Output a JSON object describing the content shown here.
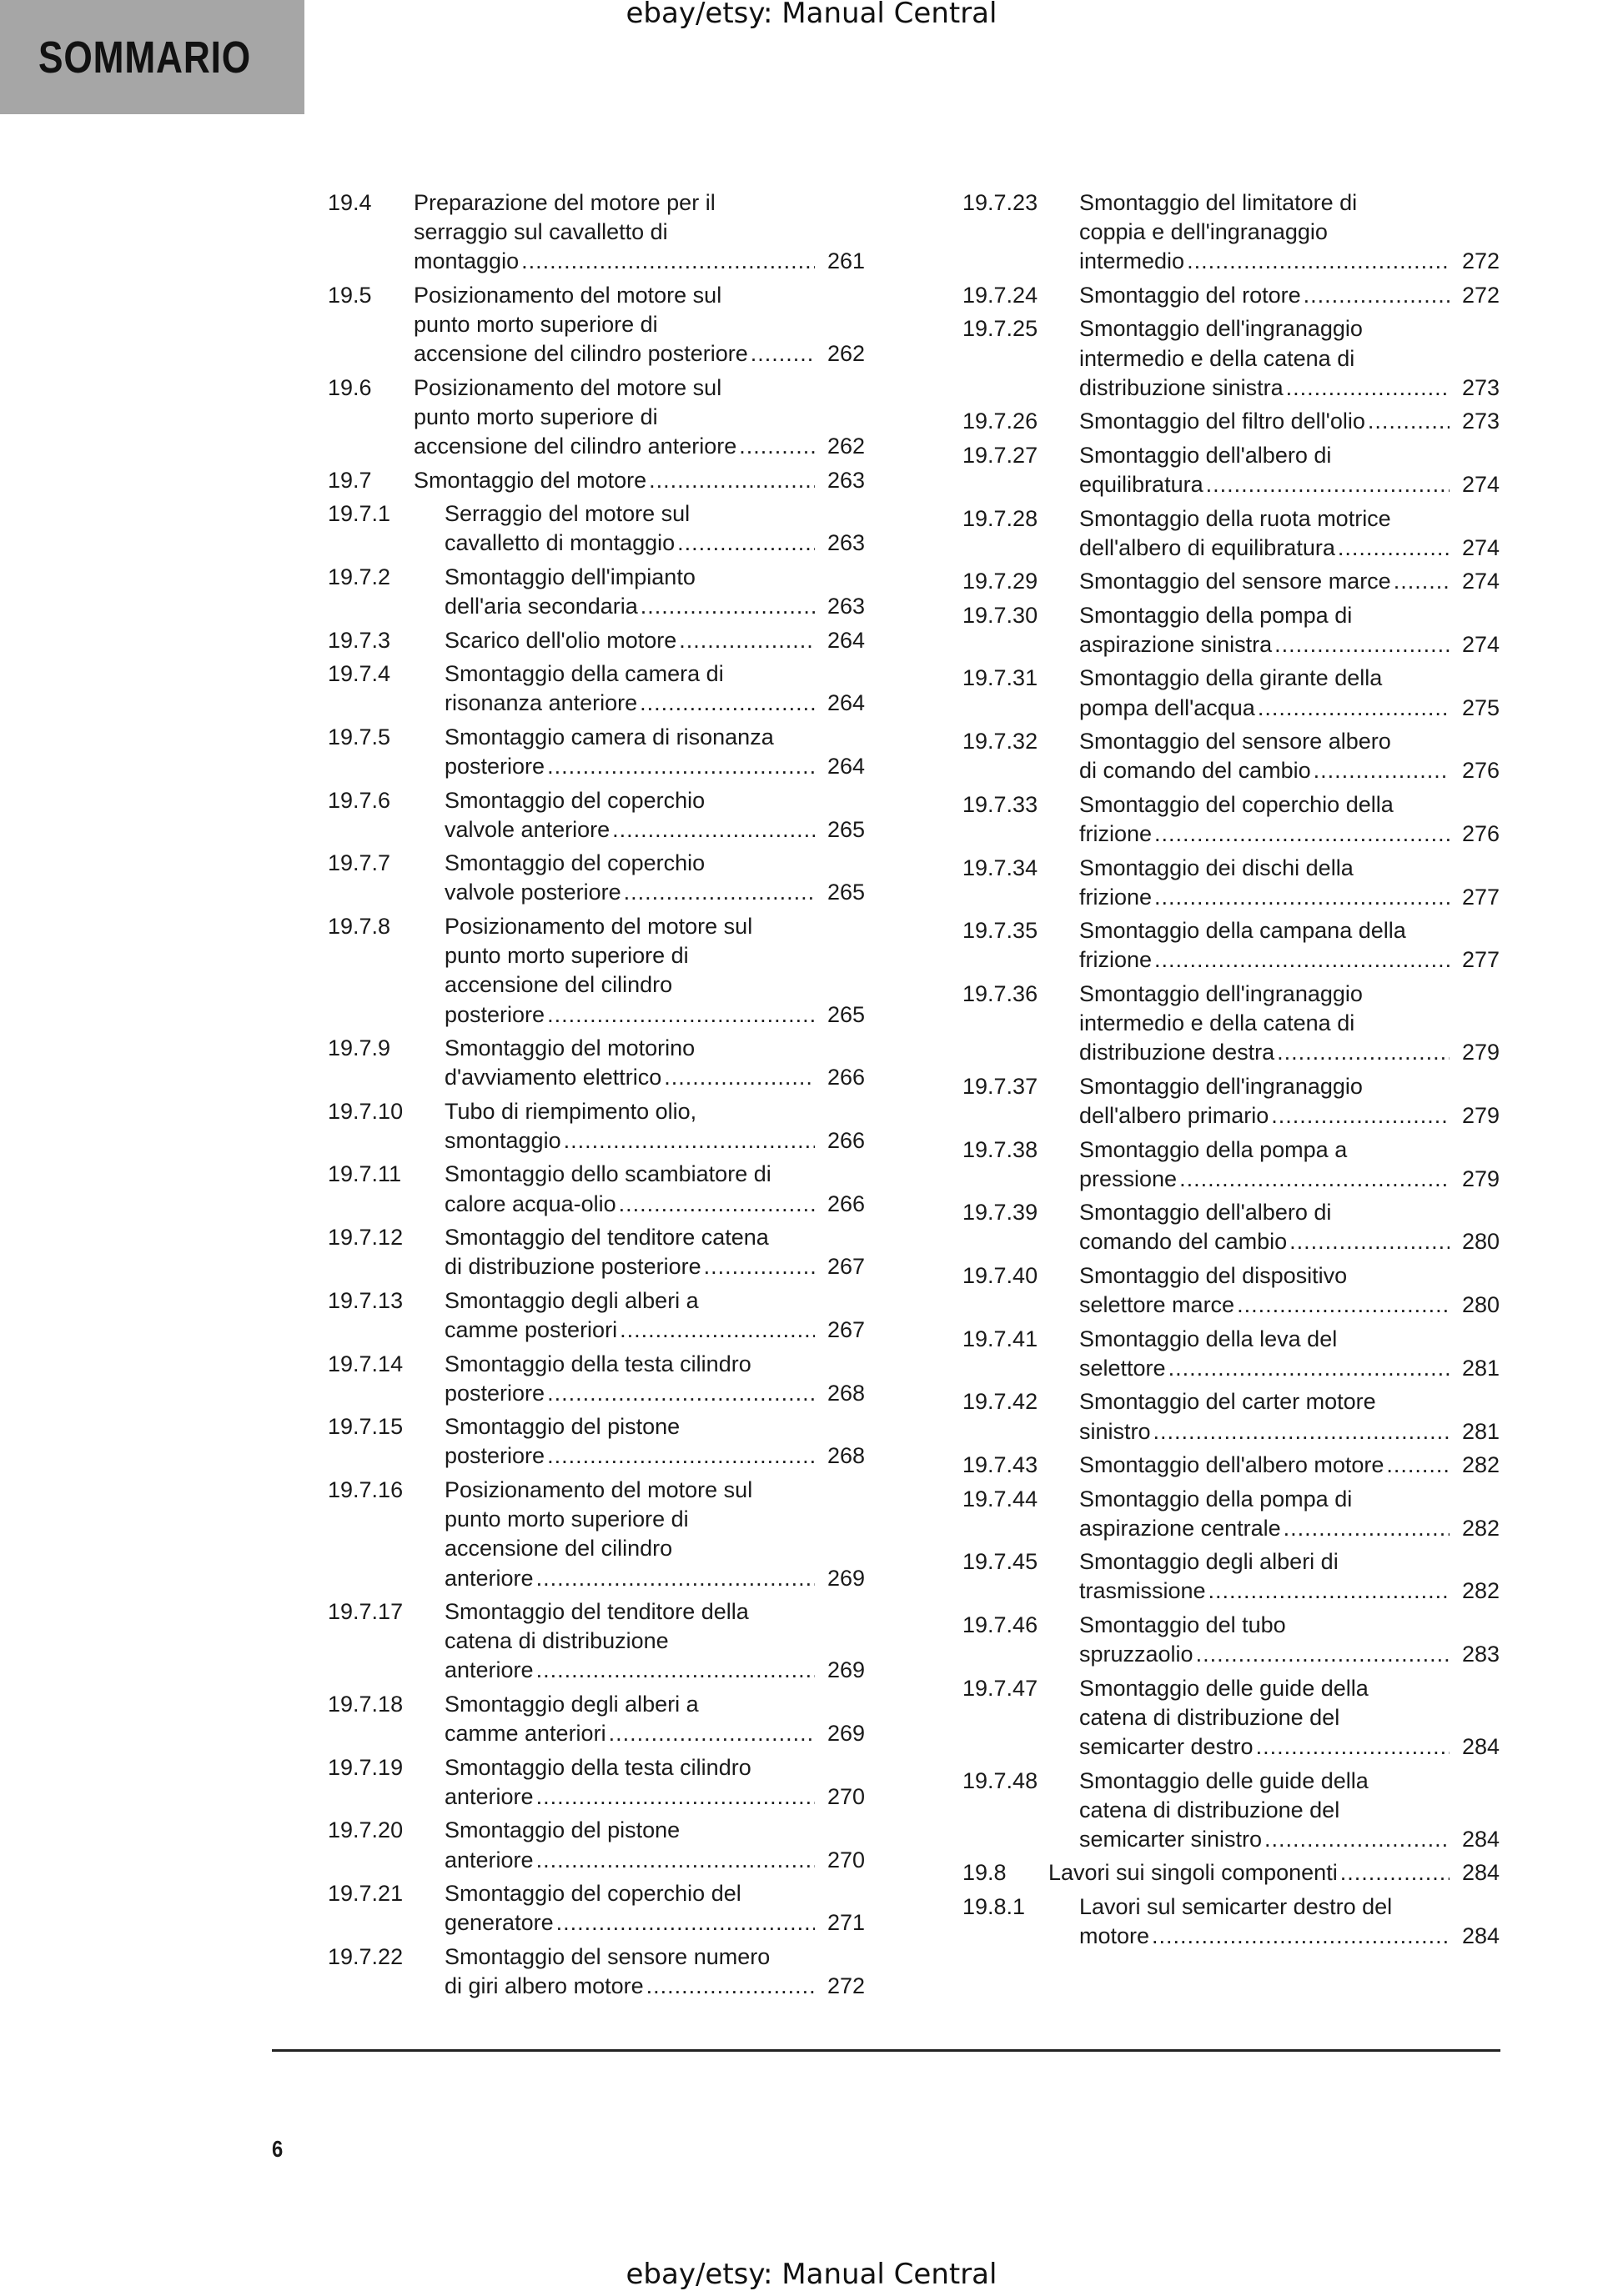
{
  "header": {
    "section_title": "SOMMARIO",
    "watermark": "ebay/etsy: Manual Central"
  },
  "footer": {
    "page_number": "6",
    "watermark": "ebay/etsy: Manual Central"
  },
  "toc": {
    "left": [
      {
        "num": "19.4",
        "level": 2,
        "lines": [
          "Preparazione del motore per il",
          "serraggio sul cavalletto di",
          "montaggio"
        ],
        "page": "261"
      },
      {
        "num": "19.5",
        "level": 2,
        "lines": [
          "Posizionamento del motore sul",
          "punto morto superiore di",
          "accensione del cilindro posteriore"
        ],
        "page": "262"
      },
      {
        "num": "19.6",
        "level": 2,
        "lines": [
          "Posizionamento del motore sul",
          "punto morto superiore di",
          "accensione del cilindro anteriore"
        ],
        "page": "262"
      },
      {
        "num": "19.7",
        "level": 2,
        "lines": [
          "Smontaggio del motore"
        ],
        "page": "263"
      },
      {
        "num": "19.7.1",
        "level": 3,
        "lines": [
          "Serraggio del motore sul",
          "cavalletto di montaggio"
        ],
        "page": "263"
      },
      {
        "num": "19.7.2",
        "level": 3,
        "lines": [
          "Smontaggio dell'impianto",
          "dell'aria secondaria"
        ],
        "page": "263"
      },
      {
        "num": "19.7.3",
        "level": 3,
        "lines": [
          "Scarico dell'olio motore"
        ],
        "page": "264"
      },
      {
        "num": "19.7.4",
        "level": 3,
        "lines": [
          "Smontaggio della camera di",
          "risonanza anteriore"
        ],
        "page": "264"
      },
      {
        "num": "19.7.5",
        "level": 3,
        "lines": [
          "Smontaggio camera di risonanza",
          "posteriore"
        ],
        "page": "264"
      },
      {
        "num": "19.7.6",
        "level": 3,
        "lines": [
          "Smontaggio del coperchio",
          "valvole anteriore"
        ],
        "page": "265"
      },
      {
        "num": "19.7.7",
        "level": 3,
        "lines": [
          "Smontaggio del coperchio",
          "valvole posteriore"
        ],
        "page": "265"
      },
      {
        "num": "19.7.8",
        "level": 3,
        "lines": [
          "Posizionamento del motore sul",
          "punto morto superiore di",
          "accensione del cilindro",
          "posteriore"
        ],
        "page": "265"
      },
      {
        "num": "19.7.9",
        "level": 3,
        "lines": [
          "Smontaggio del motorino",
          "d'avviamento elettrico"
        ],
        "page": "266"
      },
      {
        "num": "19.7.10",
        "level": 3,
        "lines": [
          "Tubo di riempimento olio,",
          "smontaggio"
        ],
        "page": "266"
      },
      {
        "num": "19.7.11",
        "level": 3,
        "lines": [
          "Smontaggio dello scambiatore di",
          "calore acqua-olio"
        ],
        "page": "266"
      },
      {
        "num": "19.7.12",
        "level": 3,
        "lines": [
          "Smontaggio del tenditore catena",
          "di distribuzione posteriore"
        ],
        "page": "267"
      },
      {
        "num": "19.7.13",
        "level": 3,
        "lines": [
          "Smontaggio degli alberi a",
          "camme posteriori"
        ],
        "page": "267"
      },
      {
        "num": "19.7.14",
        "level": 3,
        "lines": [
          "Smontaggio della testa cilindro",
          "posteriore"
        ],
        "page": "268"
      },
      {
        "num": "19.7.15",
        "level": 3,
        "lines": [
          "Smontaggio del pistone",
          "posteriore"
        ],
        "page": "268"
      },
      {
        "num": "19.7.16",
        "level": 3,
        "lines": [
          "Posizionamento del motore sul",
          "punto morto superiore di",
          "accensione del cilindro",
          "anteriore"
        ],
        "page": "269"
      },
      {
        "num": "19.7.17",
        "level": 3,
        "lines": [
          "Smontaggio del tenditore della",
          "catena di distribuzione",
          "anteriore"
        ],
        "page": "269"
      },
      {
        "num": "19.7.18",
        "level": 3,
        "lines": [
          "Smontaggio degli alberi a",
          "camme anteriori"
        ],
        "page": "269"
      },
      {
        "num": "19.7.19",
        "level": 3,
        "lines": [
          "Smontaggio della testa cilindro",
          "anteriore"
        ],
        "page": "270"
      },
      {
        "num": "19.7.20",
        "level": 3,
        "lines": [
          "Smontaggio del pistone",
          "anteriore"
        ],
        "page": "270"
      },
      {
        "num": "19.7.21",
        "level": 3,
        "lines": [
          "Smontaggio del coperchio del",
          "generatore"
        ],
        "page": "271"
      },
      {
        "num": "19.7.22",
        "level": 3,
        "lines": [
          "Smontaggio del sensore numero",
          "di giri albero motore"
        ],
        "page": "272"
      }
    ],
    "right": [
      {
        "num": "19.7.23",
        "level": 3,
        "lines": [
          "Smontaggio del limitatore di",
          "coppia e dell'ingranaggio",
          "intermedio"
        ],
        "page": "272"
      },
      {
        "num": "19.7.24",
        "level": 3,
        "lines": [
          "Smontaggio del rotore"
        ],
        "page": "272"
      },
      {
        "num": "19.7.25",
        "level": 3,
        "lines": [
          "Smontaggio dell'ingranaggio",
          "intermedio e della catena di",
          "distribuzione sinistra"
        ],
        "page": "273"
      },
      {
        "num": "19.7.26",
        "level": 3,
        "lines": [
          "Smontaggio del filtro dell'olio"
        ],
        "page": "273"
      },
      {
        "num": "19.7.27",
        "level": 3,
        "lines": [
          "Smontaggio dell'albero di",
          "equilibratura"
        ],
        "page": "274"
      },
      {
        "num": "19.7.28",
        "level": 3,
        "lines": [
          "Smontaggio della ruota motrice",
          "dell'albero di equilibratura"
        ],
        "page": "274"
      },
      {
        "num": "19.7.29",
        "level": 3,
        "lines": [
          "Smontaggio del sensore marce"
        ],
        "page": "274"
      },
      {
        "num": "19.7.30",
        "level": 3,
        "lines": [
          "Smontaggio della pompa di",
          "aspirazione sinistra"
        ],
        "page": "274"
      },
      {
        "num": "19.7.31",
        "level": 3,
        "lines": [
          "Smontaggio della girante della",
          "pompa dell'acqua"
        ],
        "page": "275"
      },
      {
        "num": "19.7.32",
        "level": 3,
        "lines": [
          "Smontaggio del sensore albero",
          "di comando del cambio"
        ],
        "page": "276"
      },
      {
        "num": "19.7.33",
        "level": 3,
        "lines": [
          "Smontaggio del coperchio della",
          "frizione"
        ],
        "page": "276"
      },
      {
        "num": "19.7.34",
        "level": 3,
        "lines": [
          "Smontaggio dei dischi della",
          "frizione"
        ],
        "page": "277"
      },
      {
        "num": "19.7.35",
        "level": 3,
        "lines": [
          "Smontaggio della campana della",
          "frizione"
        ],
        "page": "277"
      },
      {
        "num": "19.7.36",
        "level": 3,
        "lines": [
          "Smontaggio dell'ingranaggio",
          "intermedio e della catena di",
          "distribuzione destra"
        ],
        "page": "279"
      },
      {
        "num": "19.7.37",
        "level": 3,
        "lines": [
          "Smontaggio dell'ingranaggio",
          "dell'albero primario"
        ],
        "page": "279"
      },
      {
        "num": "19.7.38",
        "level": 3,
        "lines": [
          "Smontaggio della pompa a",
          "pressione"
        ],
        "page": "279"
      },
      {
        "num": "19.7.39",
        "level": 3,
        "lines": [
          "Smontaggio dell'albero di",
          "comando del cambio"
        ],
        "page": "280"
      },
      {
        "num": "19.7.40",
        "level": 3,
        "lines": [
          "Smontaggio del dispositivo",
          "selettore marce"
        ],
        "page": "280"
      },
      {
        "num": "19.7.41",
        "level": 3,
        "lines": [
          "Smontaggio della leva del",
          "selettore"
        ],
        "page": "281"
      },
      {
        "num": "19.7.42",
        "level": 3,
        "lines": [
          "Smontaggio del carter motore",
          "sinistro"
        ],
        "page": "281"
      },
      {
        "num": "19.7.43",
        "level": 3,
        "lines": [
          "Smontaggio dell'albero motore"
        ],
        "page": "282"
      },
      {
        "num": "19.7.44",
        "level": 3,
        "lines": [
          "Smontaggio della pompa di",
          "aspirazione centrale"
        ],
        "page": "282"
      },
      {
        "num": "19.7.45",
        "level": 3,
        "lines": [
          "Smontaggio degli alberi di",
          "trasmissione"
        ],
        "page": "282"
      },
      {
        "num": "19.7.46",
        "level": 3,
        "lines": [
          "Smontaggio del tubo",
          "spruzzaolio"
        ],
        "page": "283"
      },
      {
        "num": "19.7.47",
        "level": 3,
        "lines": [
          "Smontaggio delle guide della",
          "catena di distribuzione del",
          "semicarter destro"
        ],
        "page": "284"
      },
      {
        "num": "19.7.48",
        "level": 3,
        "lines": [
          "Smontaggio delle guide della",
          "catena di distribuzione del",
          "semicarter sinistro"
        ],
        "page": "284"
      },
      {
        "num": "19.8",
        "level": 2,
        "lines": [
          "Lavori sui singoli componenti"
        ],
        "page": "284"
      },
      {
        "num": "19.8.1",
        "level": 3,
        "lines": [
          "Lavori sul semicarter destro del",
          "motore"
        ],
        "page": "284"
      }
    ]
  }
}
